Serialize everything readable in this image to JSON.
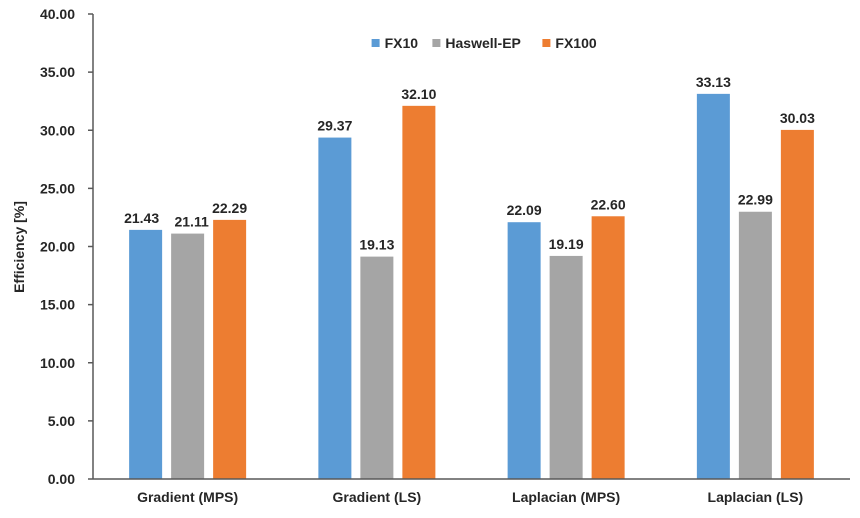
{
  "chart_data": {
    "type": "bar",
    "title": "",
    "xlabel": "",
    "ylabel": "Efficiency [%]",
    "ylim": [
      0,
      40
    ],
    "yticks": [
      "0.00",
      "5.00",
      "10.00",
      "15.00",
      "20.00",
      "25.00",
      "30.00",
      "35.00",
      "40.00"
    ],
    "categories": [
      "Gradient (MPS)",
      "Gradient (LS)",
      "Laplacian (MPS)",
      "Laplacian (LS)"
    ],
    "series": [
      {
        "name": "FX10",
        "color": "#5b9bd5",
        "values": [
          21.43,
          29.37,
          22.09,
          33.13
        ]
      },
      {
        "name": "Haswell-EP",
        "color": "#a5a5a5",
        "values": [
          21.11,
          19.13,
          19.19,
          22.99
        ]
      },
      {
        "name": "FX100",
        "color": "#ed7d31",
        "values": [
          22.29,
          32.1,
          22.6,
          30.03
        ]
      }
    ],
    "grid": false,
    "legend_position": "top"
  }
}
